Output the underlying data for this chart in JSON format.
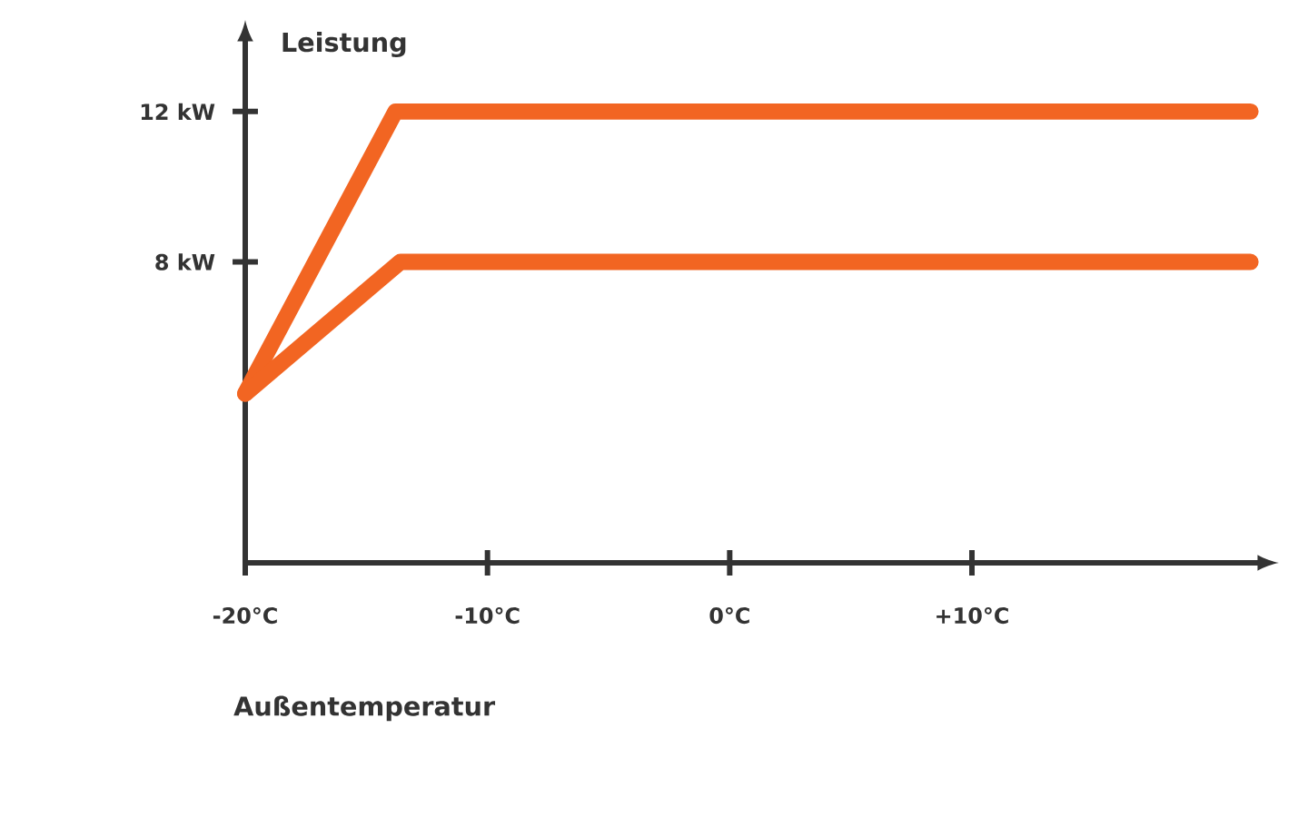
{
  "chart_data": {
    "type": "line",
    "xlabel": "Außentemperatur",
    "ylabel": "Leistung",
    "xlim": [
      -20,
      22
    ],
    "ylim": [
      0,
      14
    ],
    "xticks": [
      {
        "value": -20,
        "label": "-20°C"
      },
      {
        "value": -10,
        "label": "-10°C"
      },
      {
        "value": 0,
        "label": "0°C"
      },
      {
        "value": 10,
        "label": "+10°C"
      }
    ],
    "yticks": [
      {
        "value": 8,
        "label": "8 kW"
      },
      {
        "value": 12,
        "label": "12 kW"
      }
    ],
    "series": [
      {
        "color": "#f26522",
        "x": [
          -20,
          -13.8,
          21.5
        ],
        "values": [
          4.5,
          12,
          12
        ]
      },
      {
        "color": "#f26522",
        "x": [
          -20,
          -13.6,
          21.5
        ],
        "values": [
          4.5,
          8,
          8
        ]
      }
    ],
    "grid": false,
    "marker": "none",
    "line_style": "solid"
  }
}
